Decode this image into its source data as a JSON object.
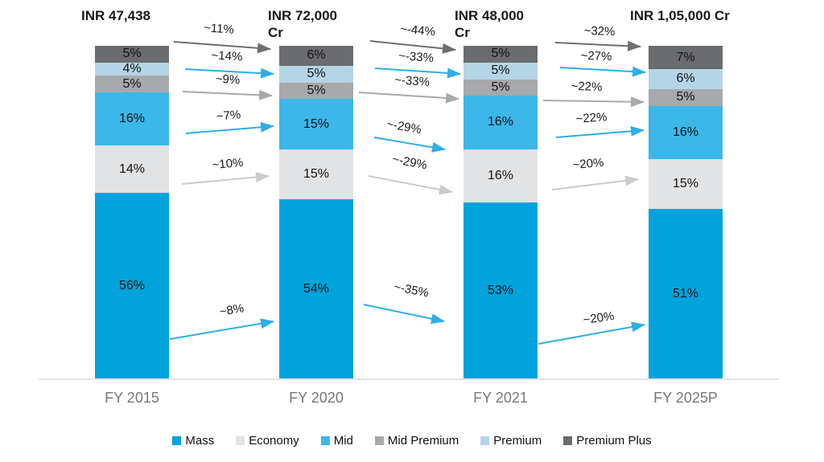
{
  "chart_data": {
    "type": "bar",
    "subtype": "stacked-100-percent-columns",
    "title": "",
    "categories": [
      "FY 2015",
      "FY 2020",
      "FY 2021",
      "FY 2025P"
    ],
    "bar_titles": [
      "INR 47,438",
      "INR 72,000\nCr",
      "INR 48,000\nCr",
      "INR 1,05,000 Cr"
    ],
    "stack_order_top_to_bottom": [
      "Premium Plus",
      "Premium",
      "Mid Premium",
      "Mid",
      "Economy",
      "Mass"
    ],
    "series": [
      {
        "name": "Mass",
        "color": "#00A3DB",
        "values": [
          56,
          54,
          53,
          51
        ]
      },
      {
        "name": "Economy",
        "color": "#E2E3E4",
        "values": [
          14,
          15,
          16,
          15
        ]
      },
      {
        "name": "Mid",
        "color": "#3BB7E9",
        "values": [
          16,
          15,
          16,
          16
        ]
      },
      {
        "name": "Mid Premium",
        "color": "#A7A9AC",
        "values": [
          5,
          5,
          5,
          5
        ]
      },
      {
        "name": "Premium",
        "color": "#B4D5E6",
        "values": [
          4,
          5,
          5,
          6
        ]
      },
      {
        "name": "Premium Plus",
        "color": "#6A6C70",
        "values": [
          5,
          6,
          5,
          7
        ]
      }
    ],
    "value_suffix": "%",
    "growth_arrows": [
      {
        "from": "FY 2015",
        "to": "FY 2020",
        "rows": {
          "Premium Plus": "~11%",
          "Premium": "~14%",
          "Mid Premium": "~9%",
          "Mid": "~7%",
          "Economy": "~10%",
          "Mass": "~8%"
        }
      },
      {
        "from": "FY 2020",
        "to": "FY 2021",
        "rows": {
          "Premium Plus": "~-44%",
          "Premium": "~-33%",
          "Mid Premium": "~-33%",
          "Mid": "~-29%",
          "Economy": "~-29%",
          "Mass": "~-35%"
        }
      },
      {
        "from": "FY 2021",
        "to": "FY 2025P",
        "rows": {
          "Premium Plus": "~32%",
          "Premium": "~27%",
          "Mid Premium": "~22%",
          "Mid": "~22%",
          "Economy": "~20%",
          "Mass": "~20%"
        }
      }
    ],
    "arrow_colors": {
      "Premium Plus": "#6D6E71",
      "Premium": "#2DAFE6",
      "Mid Premium": "#A8AAAD",
      "Mid": "#2DAFE6",
      "Economy": "#C9CBCD",
      "Mass": "#2DAFE6"
    },
    "legend": [
      "Mass",
      "Economy",
      "Mid",
      "Mid Premium",
      "Premium",
      "Premium Plus"
    ],
    "axis": {
      "baseline_color": "#E3E3E5",
      "label_color": "#77787B"
    },
    "ylim": [
      0,
      100
    ],
    "grid": "off",
    "legend_position": "bottom"
  }
}
